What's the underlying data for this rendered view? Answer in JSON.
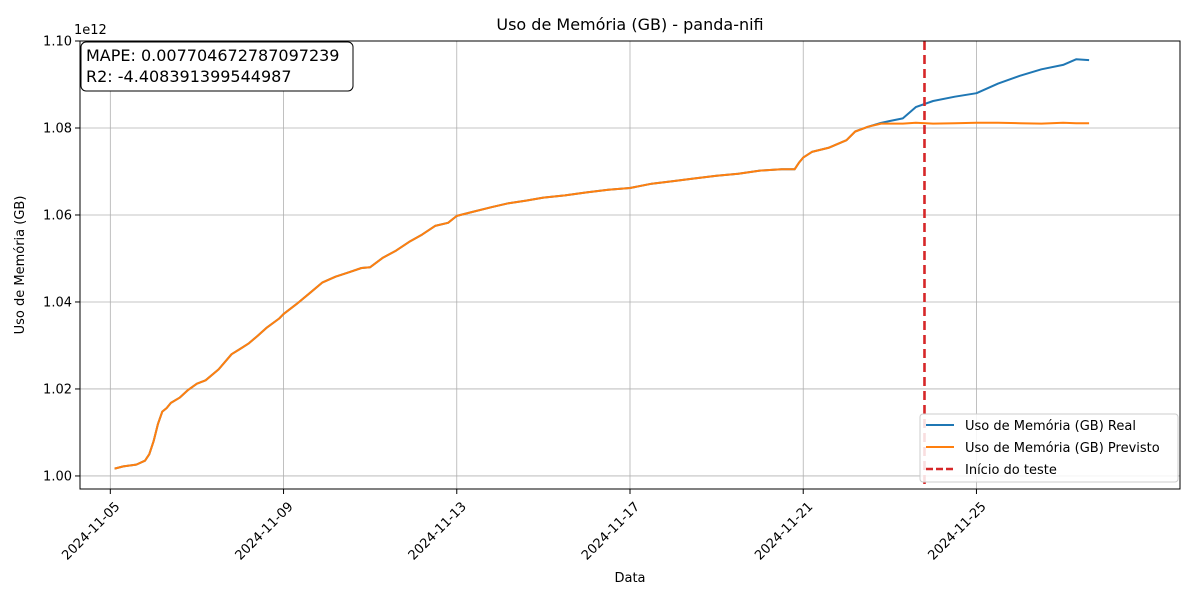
{
  "chart_data": {
    "type": "line",
    "title": "Uso de Memória (GB) - panda-nifi",
    "xlabel": "Data",
    "ylabel": "Uso de Memória (GB)",
    "y_scale_label": "1e12",
    "xlim_days": [
      -0.7,
      24.7
    ],
    "ylim": [
      0.997,
      1.1
    ],
    "x_ticks": [
      {
        "day": 0,
        "label": "2024-11-05"
      },
      {
        "day": 4,
        "label": "2024-11-09"
      },
      {
        "day": 8,
        "label": "2024-11-13"
      },
      {
        "day": 12,
        "label": "2024-11-17"
      },
      {
        "day": 16,
        "label": "2024-11-21"
      },
      {
        "day": 20,
        "label": "2024-11-25"
      }
    ],
    "y_ticks": [
      {
        "value": 1.0,
        "label": "1.00"
      },
      {
        "value": 1.02,
        "label": "1.02"
      },
      {
        "value": 1.04,
        "label": "1.04"
      },
      {
        "value": 1.06,
        "label": "1.06"
      },
      {
        "value": 1.08,
        "label": "1.08"
      },
      {
        "value": 1.1,
        "label": "1.10"
      }
    ],
    "grid": true,
    "legend_position": "bottom-right",
    "series": [
      {
        "name": "Uso de Memória (GB) Real",
        "color": "#1f77b4",
        "x": [
          0.1,
          0.3,
          0.6,
          0.8,
          0.9,
          1.0,
          1.1,
          1.2,
          1.3,
          1.4,
          1.6,
          1.8,
          2.0,
          2.2,
          2.5,
          2.8,
          3.0,
          3.2,
          3.4,
          3.6,
          3.9,
          4.0,
          4.3,
          4.6,
          4.9,
          5.2,
          5.5,
          5.8,
          6.0,
          6.3,
          6.6,
          6.9,
          7.2,
          7.5,
          7.8,
          8.0,
          8.4,
          8.8,
          9.2,
          9.6,
          10.0,
          10.5,
          11.0,
          11.5,
          12.0,
          12.5,
          13.0,
          13.5,
          14.0,
          14.5,
          15.0,
          15.5,
          15.8,
          15.9,
          16.0,
          16.2,
          16.6,
          17.0,
          17.2,
          17.5,
          17.8,
          18.0,
          18.3,
          18.6,
          19.0,
          19.5,
          20.0,
          20.5,
          21.0,
          21.5,
          22.0,
          22.3,
          22.6
        ],
        "values": [
          1.0017,
          1.0022,
          1.0026,
          1.0035,
          1.005,
          1.008,
          1.012,
          1.0148,
          1.0156,
          1.0168,
          1.018,
          1.0198,
          1.0212,
          1.022,
          1.0245,
          1.028,
          1.0292,
          1.0305,
          1.0322,
          1.034,
          1.0362,
          1.0372,
          1.0395,
          1.042,
          1.0445,
          1.0458,
          1.0468,
          1.0478,
          1.048,
          1.0502,
          1.0518,
          1.0538,
          1.0555,
          1.0575,
          1.0582,
          1.0598,
          1.0608,
          1.0618,
          1.0627,
          1.0633,
          1.064,
          1.0645,
          1.0652,
          1.0658,
          1.0662,
          1.0672,
          1.0678,
          1.0684,
          1.069,
          1.0695,
          1.0702,
          1.0705,
          1.0705,
          1.072,
          1.0732,
          1.0745,
          1.0755,
          1.0772,
          1.0792,
          1.0803,
          1.0812,
          1.0816,
          1.0822,
          1.0848,
          1.0862,
          1.0872,
          1.088,
          1.0902,
          1.092,
          1.0935,
          1.0945,
          1.0958,
          1.0956
        ]
      },
      {
        "name": "Uso de Memória (GB) Previsto",
        "color": "#ff7f0e",
        "x": [
          0.1,
          0.3,
          0.6,
          0.8,
          0.9,
          1.0,
          1.1,
          1.2,
          1.3,
          1.4,
          1.6,
          1.8,
          2.0,
          2.2,
          2.5,
          2.8,
          3.0,
          3.2,
          3.4,
          3.6,
          3.9,
          4.0,
          4.3,
          4.6,
          4.9,
          5.2,
          5.5,
          5.8,
          6.0,
          6.3,
          6.6,
          6.9,
          7.2,
          7.5,
          7.8,
          8.0,
          8.4,
          8.8,
          9.2,
          9.6,
          10.0,
          10.5,
          11.0,
          11.5,
          12.0,
          12.5,
          13.0,
          13.5,
          14.0,
          14.5,
          15.0,
          15.5,
          15.8,
          15.9,
          16.0,
          16.2,
          16.6,
          17.0,
          17.2,
          17.5,
          17.8,
          18.0,
          18.3,
          18.6,
          19.0,
          19.5,
          20.0,
          20.5,
          21.0,
          21.5,
          22.0,
          22.3,
          22.6
        ],
        "values": [
          1.0017,
          1.0022,
          1.0026,
          1.0035,
          1.005,
          1.008,
          1.012,
          1.0148,
          1.0156,
          1.0168,
          1.018,
          1.0198,
          1.0212,
          1.022,
          1.0245,
          1.028,
          1.0292,
          1.0305,
          1.0322,
          1.034,
          1.0362,
          1.0372,
          1.0395,
          1.042,
          1.0445,
          1.0458,
          1.0468,
          1.0478,
          1.048,
          1.0502,
          1.0518,
          1.0538,
          1.0555,
          1.0575,
          1.0582,
          1.0598,
          1.0608,
          1.0618,
          1.0627,
          1.0633,
          1.064,
          1.0645,
          1.0652,
          1.0658,
          1.0662,
          1.0672,
          1.0678,
          1.0684,
          1.069,
          1.0695,
          1.0702,
          1.0705,
          1.0705,
          1.072,
          1.0732,
          1.0745,
          1.0755,
          1.0772,
          1.0792,
          1.0803,
          1.081,
          1.081,
          1.081,
          1.0812,
          1.081,
          1.0811,
          1.0812,
          1.0812,
          1.0811,
          1.081,
          1.0812,
          1.0811,
          1.0811
        ]
      }
    ],
    "test_start": {
      "name": "Início do teste",
      "day": 18.8,
      "color": "#d62728"
    },
    "annotation": {
      "mape_line": "MAPE: 0.007704672787097239",
      "r2_line": "R2: -4.408391399544987"
    }
  }
}
